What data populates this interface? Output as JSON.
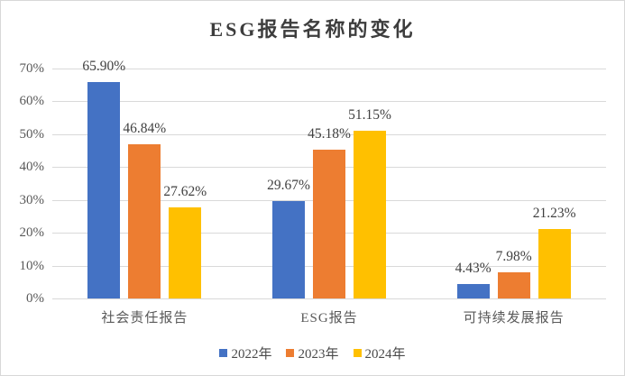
{
  "chart_data": {
    "type": "bar",
    "title": "ESG报告名称的变化",
    "categories": [
      "社会责任报告",
      "ESG报告",
      "可持续发展报告"
    ],
    "series": [
      {
        "name": "2022年",
        "color": "#4472C4",
        "values": [
          65.9,
          29.67,
          4.43
        ],
        "data_labels": [
          "65.90%",
          "29.67%",
          "4.43%"
        ]
      },
      {
        "name": "2023年",
        "color": "#ED7D31",
        "values": [
          46.84,
          45.18,
          7.98
        ],
        "data_labels": [
          "46.84%",
          "45.18%",
          "7.98%"
        ]
      },
      {
        "name": "2024年",
        "color": "#FFC000",
        "values": [
          27.62,
          51.15,
          21.23
        ],
        "data_labels": [
          "27.62%",
          "51.15%",
          "21.23%"
        ]
      }
    ],
    "xlabel": "",
    "ylabel": "",
    "ylim": [
      0,
      70
    ],
    "y_ticks": [
      "0%",
      "10%",
      "20%",
      "30%",
      "40%",
      "50%",
      "60%",
      "70%"
    ],
    "grid": true,
    "legend_position": "bottom",
    "colors": {
      "gridline": "#d9d9d9",
      "axis_text": "#595959",
      "data_label_text": "#404040",
      "title_text": "#3d3d3d",
      "frame_border": "#d8d8d8",
      "background": "#ffffff"
    }
  }
}
